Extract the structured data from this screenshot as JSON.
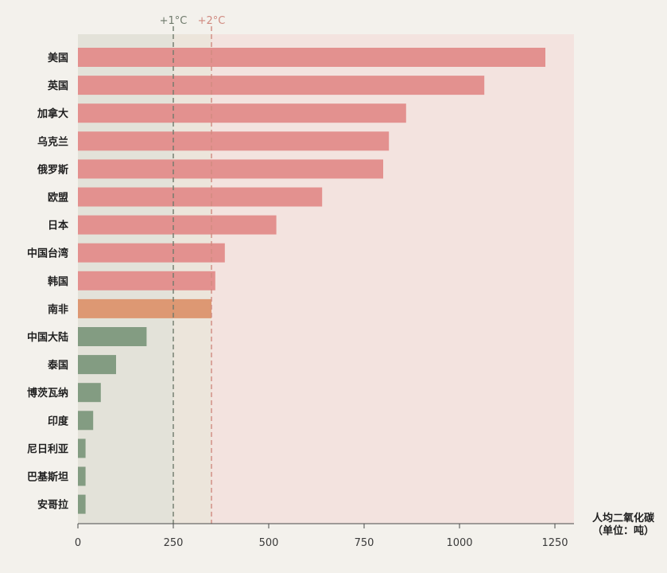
{
  "chart_data": {
    "type": "bar",
    "orientation": "horizontal",
    "categories": [
      "美国",
      "英国",
      "加拿大",
      "乌克兰",
      "俄罗斯",
      "欧盟",
      "日本",
      "中国台湾",
      "韩国",
      "南非",
      "中国大陆",
      "泰国",
      "博茨瓦纳",
      "印度",
      "尼日利亚",
      "巴基斯坦",
      "安哥拉"
    ],
    "values": [
      1225,
      1065,
      860,
      815,
      800,
      640,
      520,
      385,
      360,
      350,
      180,
      100,
      60,
      40,
      20,
      20,
      20
    ],
    "bar_colors": [
      "#e3918f",
      "#e3918f",
      "#e3918f",
      "#e3918f",
      "#e3918f",
      "#e3918f",
      "#e3918f",
      "#e3918f",
      "#e3918f",
      "#dd9873",
      "#839c82",
      "#839c82",
      "#839c82",
      "#839c82",
      "#839c82",
      "#839c82",
      "#839c82"
    ],
    "xlim": [
      0,
      1300
    ],
    "xticks": [
      0,
      250,
      500,
      750,
      1000,
      1250
    ],
    "xticklabels": [
      "0",
      "250",
      "500",
      "750",
      "1000",
      "1250"
    ],
    "xlabel_lines": [
      "人均二氧化碳",
      "（单位：吨）"
    ],
    "reference_lines": [
      {
        "label": "+1°C",
        "value": 250,
        "color": "#6f7a6c"
      },
      {
        "label": "+2°C",
        "value": 350,
        "color": "#d08a80"
      }
    ],
    "bands": [
      {
        "from": 0,
        "to": 250,
        "color": "#e3e2d9"
      },
      {
        "from": 250,
        "to": 350,
        "color": "#ece5db"
      },
      {
        "from": 350,
        "to": 1300,
        "color": "#f3e3df"
      }
    ]
  }
}
